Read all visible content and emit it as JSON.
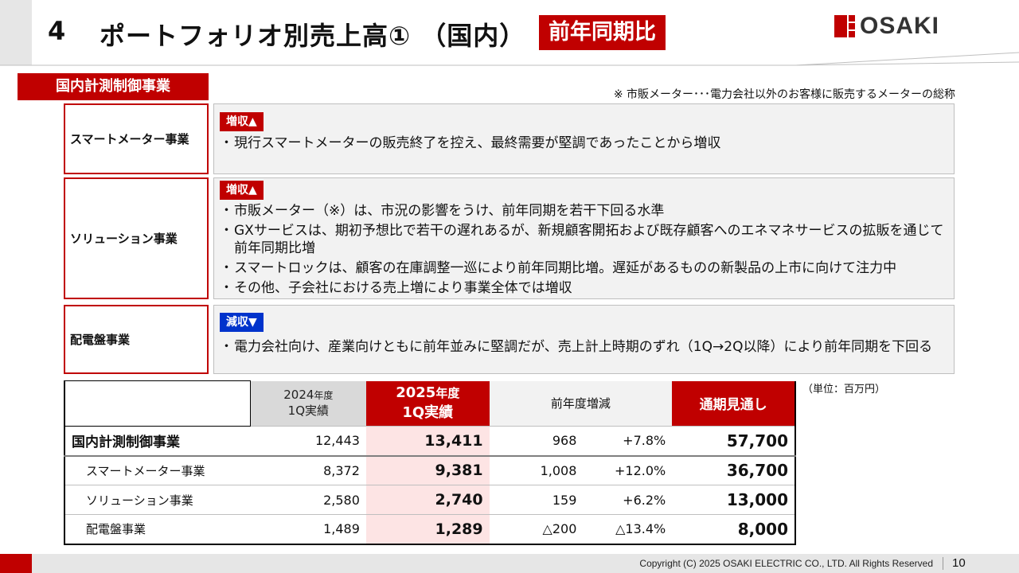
{
  "header": {
    "number": "4",
    "title": "ポートフォリオ別売上高① （国内）",
    "badge": "前年同期比",
    "logo_text": "OSAKI"
  },
  "section_label": "国内計測制御事業",
  "note": "※ 市販メーター･･･電力会社以外のお客様に販売するメーターの総称",
  "segments": [
    {
      "name": "スマートメーター事業",
      "tag": "増収▲",
      "bullets": [
        "現行スマートメーターの販売終了を控え、最終需要が堅調であったことから増収"
      ]
    },
    {
      "name": "ソリューション事業",
      "tag": "増収▲",
      "bullets": [
        "市販メーター（※）は、市況の影響をうけ、前年同期を若干下回る水準",
        "GXサービスは、期初予想比で若干の遅れあるが、新規顧客開拓および既存顧客へのエネマネサービスの拡販を通じて前年同期比増",
        "スマートロックは、顧客の在庫調整一巡により前年同期比増。遅延があるものの新製品の上市に向けて注力中",
        "その他、子会社における売上増により事業全体では増収"
      ]
    },
    {
      "name": "配電盤事業",
      "tag": "減収▼",
      "bullets": [
        "電力会社向け、産業向けともに前年並みに堅調だが、売上計上時期のずれ（1Q→2Q以降）により前年同期を下回る"
      ]
    }
  ],
  "table": {
    "unit": "（単位：百万円）",
    "headers": {
      "y2024_year": "2024",
      "y2024_suffix": "年度",
      "y2024_q": "1Q実績",
      "y2025_year": "2025",
      "y2025_suffix": "年度",
      "y2025_q": "1Q実績",
      "diff": "前年度増減",
      "forecast": "通期見通し"
    },
    "rows": [
      {
        "name": "国内計測制御事業",
        "v2024": "12,443",
        "v2025": "13,411",
        "diff": "968",
        "pct": "+7.8%",
        "fy": "57,700"
      },
      {
        "name": "スマートメーター事業",
        "v2024": "8,372",
        "v2025": "9,381",
        "diff": "1,008",
        "pct": "+12.0%",
        "fy": "36,700"
      },
      {
        "name": "ソリューション事業",
        "v2024": "2,580",
        "v2025": "2,740",
        "diff": "159",
        "pct": "+6.2%",
        "fy": "13,000"
      },
      {
        "name": "配電盤事業",
        "v2024": "1,489",
        "v2025": "1,289",
        "diff": "△200",
        "pct": "△13.4%",
        "fy": "8,000"
      }
    ]
  },
  "footer": {
    "copyright": "Copyright (C) 2025 OSAKI ELECTRIC CO., LTD. All Rights Reserved",
    "page": "10"
  },
  "colors": {
    "accent": "#c00000",
    "down_tag": "#0033cc",
    "highlight": "#fde4e4"
  }
}
